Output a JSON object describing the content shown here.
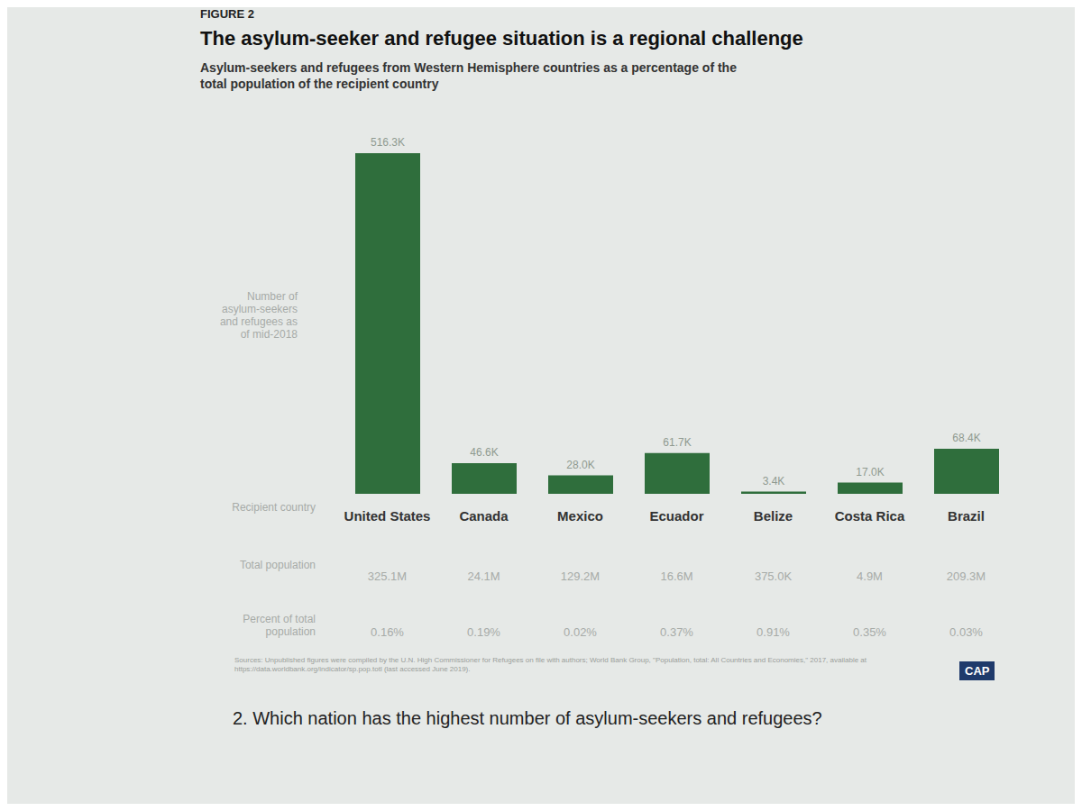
{
  "chart_data": {
    "type": "bar",
    "figure_label": "FIGURE 2",
    "title": "The asylum-seeker and refugee situation is a regional challenge",
    "subtitle": "Asylum-seekers and refugees from Western Hemisphere countries as a percentage of the total population of the recipient country",
    "y_label": "Number of asylum-seekers and refugees as of mid-2018",
    "categories": [
      "United States",
      "Canada",
      "Mexico",
      "Ecuador",
      "Belize",
      "Costa Rica",
      "Brazil"
    ],
    "values": [
      516.3,
      46.6,
      28.0,
      61.7,
      3.4,
      17.0,
      68.4
    ],
    "value_labels": [
      "516.3K",
      "46.6K",
      "28.0K",
      "61.7K",
      "3.4K",
      "17.0K",
      "68.4K"
    ],
    "data_labels": true,
    "color": "#2f6e3c",
    "tick_labels": "x",
    "grid": false,
    "row_labels": {
      "category": "Recipient country",
      "population": "Total population",
      "percent": "Percent of total population"
    },
    "total_population": [
      "325.1M",
      "24.1M",
      "129.2M",
      "16.6M",
      "375.0K",
      "4.9M",
      "209.3M"
    ],
    "percent_of_total": [
      "0.16%",
      "0.19%",
      "0.02%",
      "0.37%",
      "0.91%",
      "0.35%",
      "0.03%"
    ]
  },
  "source": "Sources: Unpublished figures were compiled by the U.N. High Commissioner for Refugees on file with authors; World Bank Group, \"Population, total: All Countries and Economies,\" 2017, available at https://data.worldbank.org/indicator/sp.pop.totl (last accessed June 2019).",
  "logo": "CAP",
  "question": "2. Which nation has the highest number of asylum-seekers and refugees?"
}
